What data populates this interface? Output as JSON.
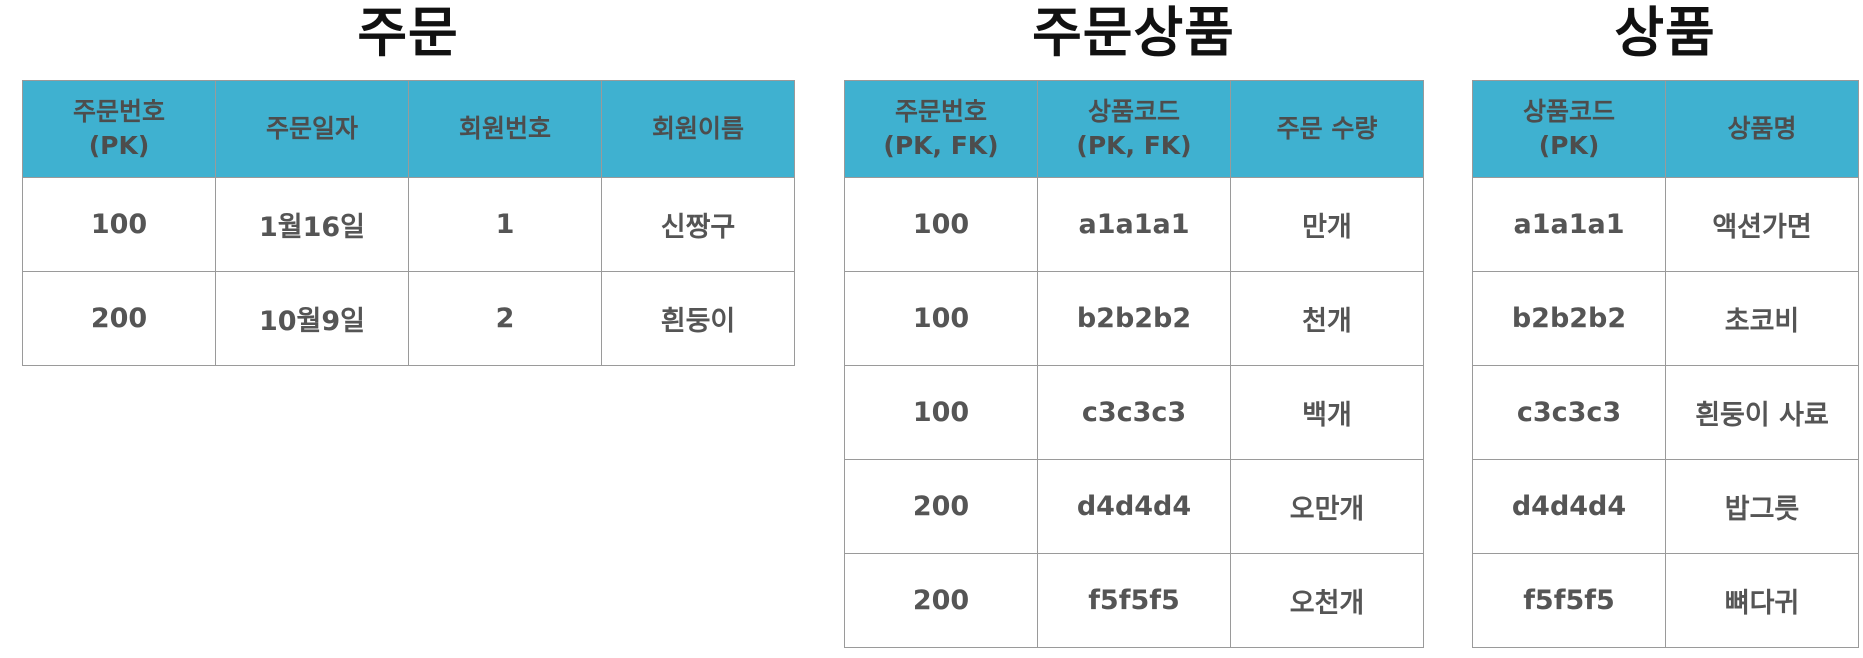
{
  "tables": [
    {
      "title": "주문",
      "headers": [
        {
          "main": "주문번호",
          "sub": "(PK)"
        },
        {
          "main": "주문일자",
          "sub": ""
        },
        {
          "main": "회원번호",
          "sub": ""
        },
        {
          "main": "회원이름",
          "sub": ""
        }
      ],
      "rows": [
        [
          "100",
          "1월16일",
          "1",
          "신짱구"
        ],
        [
          "200",
          "10월9일",
          "2",
          "흰둥이"
        ]
      ]
    },
    {
      "title": "주문상품",
      "headers": [
        {
          "main": "주문번호",
          "sub": "(PK, FK)"
        },
        {
          "main": "상품코드",
          "sub": "(PK, FK)"
        },
        {
          "main": "주문 수량",
          "sub": ""
        }
      ],
      "rows": [
        [
          "100",
          "a1a1a1",
          "만개"
        ],
        [
          "100",
          "b2b2b2",
          "천개"
        ],
        [
          "100",
          "c3c3c3",
          "백개"
        ],
        [
          "200",
          "d4d4d4",
          "오만개"
        ],
        [
          "200",
          "f5f5f5",
          "오천개"
        ]
      ]
    },
    {
      "title": "상품",
      "headers": [
        {
          "main": "상품코드",
          "sub": "(PK)"
        },
        {
          "main": "상품명",
          "sub": ""
        }
      ],
      "rows": [
        [
          "a1a1a1",
          "액션가면"
        ],
        [
          "b2b2b2",
          "초코비"
        ],
        [
          "c3c3c3",
          "흰둥이 사료"
        ],
        [
          "d4d4d4",
          "밥그릇"
        ],
        [
          "f5f5f5",
          "뼈다귀"
        ]
      ]
    }
  ]
}
